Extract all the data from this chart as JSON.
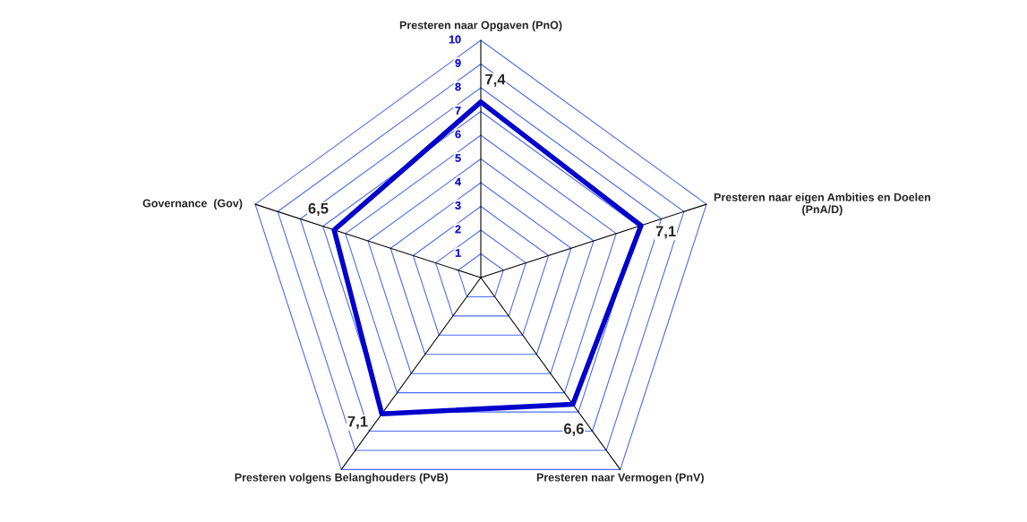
{
  "chart_data": {
    "type": "radar",
    "categories": [
      "Presteren naar Opgaven (PnO)",
      "Presteren naar eigen Ambities en Doelen\n(PnA/D)",
      "Presteren naar Vermogen (PnV)",
      "Presteren volgens Belanghouders (PvB)",
      "Governance  (Gov)"
    ],
    "series": [
      {
        "color": "#0000cc",
        "values": [
          7.4,
          7.1,
          6.6,
          7.1,
          6.5
        ],
        "value_labels": [
          "7,4",
          "7,1",
          "6,6",
          "7,1",
          "6,5"
        ]
      }
    ],
    "ylim": [
      0,
      10
    ],
    "yticks": [
      1,
      2,
      3,
      4,
      5,
      6,
      7,
      8,
      9,
      10
    ],
    "grid": true,
    "legend": false
  }
}
